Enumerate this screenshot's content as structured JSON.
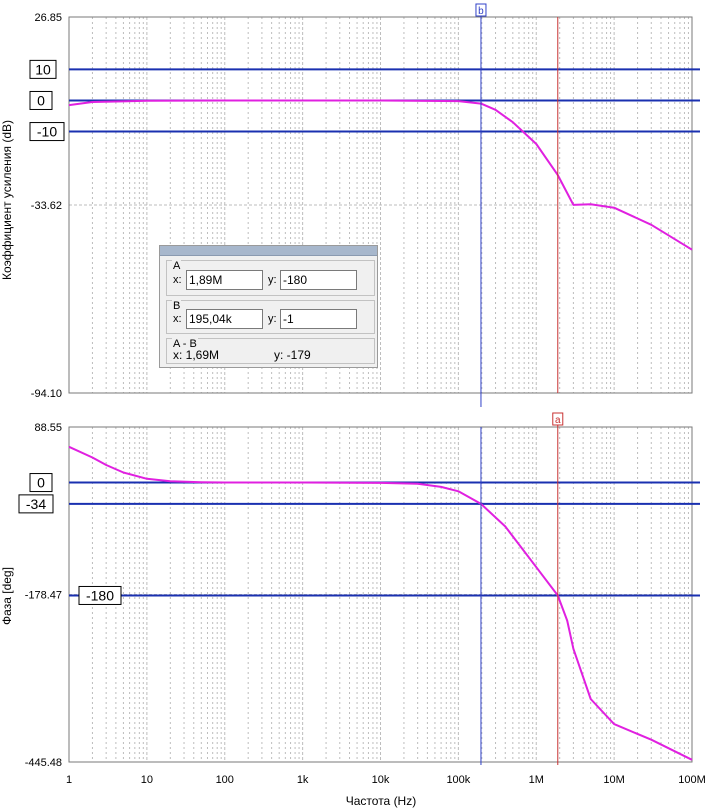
{
  "colors": {
    "curve": "#e020e0",
    "cursor_a": "#c83232",
    "cursor_b": "#3040c8",
    "marker_line": "#1a30b0",
    "grid": "#bdbdbd",
    "dialog_title": "#a7b7cc"
  },
  "chart_data": [
    {
      "type": "line",
      "xscale": "log",
      "xlim": [
        1,
        100000000
      ],
      "ylim": [
        -94.1,
        26.85
      ],
      "ylabel": "Коэффициент усиления (dB)",
      "y_tick_labels": [
        "26.85",
        "-33.62",
        "-94.10"
      ],
      "y_ticks": [
        26.85,
        -33.62,
        -94.1
      ],
      "grid": true,
      "series": [
        {
          "x": [
            1,
            2,
            10,
            100,
            1000,
            10000,
            100000,
            195040,
            300000,
            500000,
            1000000,
            1890000,
            3000000,
            5000000,
            10000000,
            30000000,
            100000000
          ],
          "y": [
            -1.5,
            -0.5,
            -0.1,
            0,
            0,
            0,
            -0.2,
            -1,
            -3,
            -7,
            -14,
            -24,
            -33.6,
            -33.4,
            -34.5,
            -40,
            -48
          ]
        }
      ],
      "markers": [
        {
          "label": "10",
          "y": 10
        },
        {
          "label": "0",
          "y": 0
        },
        {
          "label": "-10",
          "y": -10
        }
      ]
    },
    {
      "type": "line",
      "xscale": "log",
      "xlim": [
        1,
        100000000
      ],
      "ylim": [
        -445.48,
        88.55
      ],
      "ylabel": "Фаза [deg]",
      "xlabel": "Частота (Hz)",
      "y_tick_labels": [
        "88.55",
        "-178.47",
        "-445.48"
      ],
      "y_ticks": [
        88.55,
        -178.47,
        -445.48
      ],
      "x_tick_labels": [
        "1",
        "10",
        "100",
        "1k",
        "10k",
        "100k",
        "1M",
        "10M",
        "100M"
      ],
      "x_ticks": [
        1,
        10,
        100,
        1000,
        10000,
        100000,
        1000000,
        10000000,
        100000000
      ],
      "grid": true,
      "series": [
        {
          "x": [
            1,
            2,
            3,
            5,
            10,
            20,
            50,
            100,
            1000,
            10000,
            30000,
            60000,
            100000,
            195040,
            400000,
            1000000,
            1890000,
            2500000,
            3000000,
            5000000,
            10000000,
            30000000,
            100000000
          ],
          "y": [
            57,
            40,
            28,
            16,
            6,
            2,
            0.5,
            0,
            0,
            -0.5,
            -2,
            -7,
            -14,
            -34,
            -70,
            -135,
            -180,
            -220,
            -265,
            -345,
            -385,
            -410,
            -442
          ]
        }
      ],
      "markers": [
        {
          "label": "0",
          "y": 0
        },
        {
          "label": "-34",
          "y": -34
        },
        {
          "label": "-180",
          "y": -180
        }
      ]
    }
  ],
  "cursors": {
    "a": {
      "label": "a",
      "x": 1890000
    },
    "b": {
      "label": "b",
      "x": 195040
    }
  },
  "dialog": {
    "a_group": "A",
    "a_x_label": "x:",
    "a_x": "1,89M",
    "a_y_label": "y:",
    "a_y": "-180",
    "b_group": "B",
    "b_x_label": "x:",
    "b_x": "195,04k",
    "b_y_label": "y:",
    "b_y": "-1",
    "ab_group": "A - B",
    "ab_x": "x:  1,69M",
    "ab_y": "y:  -179"
  }
}
